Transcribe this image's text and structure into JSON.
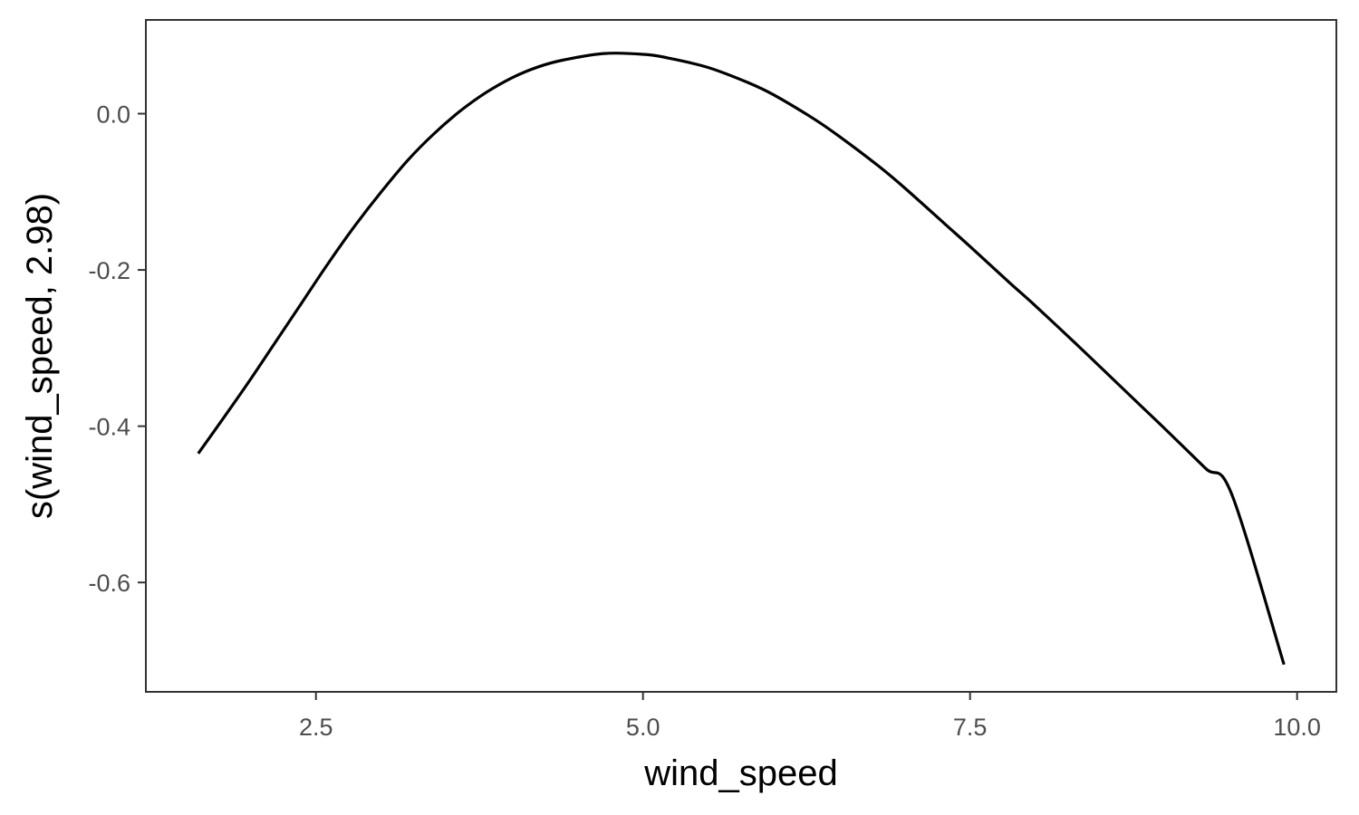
{
  "chart_data": {
    "type": "line",
    "title": "",
    "xlabel": "wind_speed",
    "ylabel": "s(wind_speed, 2.98)",
    "xlim": [
      1.2,
      10.3
    ],
    "ylim": [
      -0.74,
      0.12
    ],
    "x_ticks": [
      2.5,
      5.0,
      7.5,
      10.0
    ],
    "x_tick_labels": [
      "2.5",
      "5.0",
      "7.5",
      "10.0"
    ],
    "y_ticks": [
      0.0,
      -0.2,
      -0.4,
      -0.6
    ],
    "y_tick_labels": [
      "0.0",
      "-0.2",
      "-0.4",
      "-0.6"
    ],
    "grid": false,
    "line_color": "#000000",
    "series": [
      {
        "x": [
          1.6,
          1.8,
          2.0,
          2.2,
          2.4,
          2.6,
          2.8,
          3.0,
          3.2,
          3.4,
          3.6,
          3.8,
          4.0,
          4.2,
          4.4,
          4.7,
          5.0,
          5.2,
          5.5,
          5.8,
          6.0,
          6.3,
          6.5,
          6.8,
          7.0,
          7.3,
          7.5,
          7.8,
          8.0,
          8.3,
          8.5,
          8.8,
          9.0,
          9.3,
          9.5,
          9.9
        ],
        "y": [
          -0.435,
          -0.388,
          -0.34,
          -0.29,
          -0.24,
          -0.19,
          -0.143,
          -0.1,
          -0.06,
          -0.026,
          0.003,
          0.027,
          0.046,
          0.06,
          0.069,
          0.077,
          0.076,
          0.071,
          0.059,
          0.04,
          0.024,
          -0.006,
          -0.029,
          -0.067,
          -0.095,
          -0.14,
          -0.17,
          -0.216,
          -0.246,
          -0.293,
          -0.325,
          -0.373,
          -0.405,
          -0.454,
          -0.487,
          -0.705
        ]
      }
    ]
  }
}
